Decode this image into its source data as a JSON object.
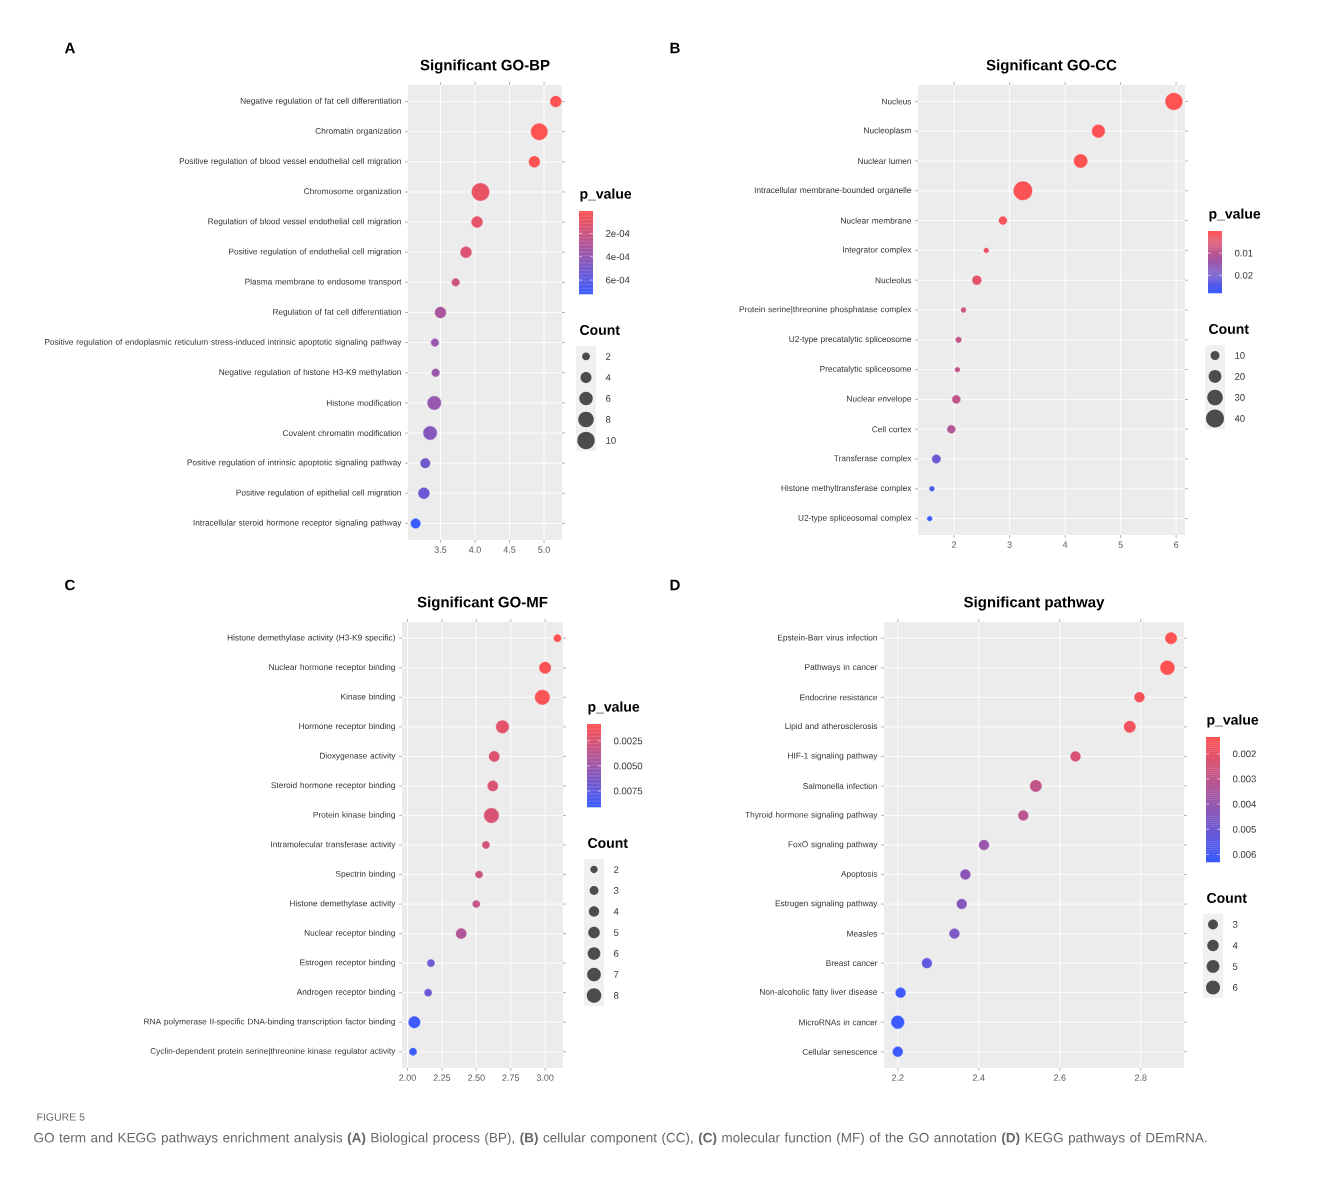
{
  "chart_data": [
    {
      "type": "bubble",
      "orientation": "horizontal",
      "title": "Significant GO-BP",
      "clabel": "p_value",
      "legend_title": "Count",
      "grid": true,
      "annotations": [
        "A"
      ],
      "categories": [
        "Negative regulation of fat cell differentiation",
        "Chromatin organization",
        "Positive regulation of blood vessel endothelial cell migration",
        "Chromosome organization",
        "Regulation of blood vessel endothelial cell migration",
        "Positive regulation of endothelial cell migration",
        "Plasma membrane to endosome transport",
        "Regulation of fat cell differentiation",
        "Positive regulation of endoplasmic reticulum stress-induced intrinsic apoptotic signaling pathway",
        "Negative regulation of histone H3-K9 methylation",
        "Histone modification",
        "Covalent chromatin modification",
        "Positive regulation of intrinsic apoptotic signaling pathway",
        "Positive regulation of epithelial cell migration",
        "Intracellular steroid hormone receptor signaling pathway"
      ],
      "values": [
        5.17,
        4.93,
        4.86,
        4.08,
        4.03,
        3.87,
        3.72,
        3.5,
        3.42,
        3.43,
        3.41,
        3.35,
        3.28,
        3.26,
        3.14
      ],
      "sizes": [
        4,
        9,
        4,
        10,
        4,
        4,
        2,
        4,
        2,
        2,
        6,
        6,
        3,
        4,
        3
      ],
      "cvalues": [
        6.8e-06,
        1.2e-05,
        1.4e-05,
        8.3e-05,
        9.3e-05,
        0.000135,
        0.00019,
        0.00032,
        0.00038,
        0.00037,
        0.00039,
        0.00045,
        0.00052,
        0.00055,
        0.00072
      ],
      "clim": [
        6.8e-06,
        0.00072
      ],
      "cticks": [
        {
          "value": 0.0002,
          "label": "2e-04"
        },
        {
          "value": 0.0004,
          "label": "4e-04"
        },
        {
          "value": 0.0006,
          "label": "6e-04"
        }
      ],
      "size_legend": [
        2,
        4,
        6,
        8,
        10
      ],
      "xlim": [
        3.03,
        5.26
      ],
      "xticks": [
        3.5,
        {
          "value": 4,
          "label": "4.0"
        },
        4.5,
        {
          "value": 5,
          "label": "5.0"
        }
      ]
    },
    {
      "type": "bubble",
      "orientation": "horizontal",
      "title": "Significant GO-CC",
      "clabel": "p_value",
      "legend_title": "Count",
      "grid": true,
      "annotations": [
        "B"
      ],
      "categories": [
        "Nucleus",
        "Nucleoplasm",
        "Nuclear lumen",
        "Intracellular membrane-bounded organelle",
        "Nuclear membrane",
        "Integrator complex",
        "Nucleolus",
        "Protein serine|threonine phosphatase complex",
        "U2-type precatalytic spliceosome",
        "Precatalytic spliceosome",
        "Nuclear envelope",
        "Cell cortex",
        "Transferase complex",
        "Histone methyltransferase complex",
        "U2-type spliceosomal complex"
      ],
      "values": [
        5.96,
        4.6,
        4.28,
        3.24,
        2.88,
        2.58,
        2.41,
        2.17,
        2.08,
        2.06,
        2.04,
        1.95,
        1.68,
        1.6,
        1.56
      ],
      "sizes": [
        35,
        20,
        22,
        42,
        8,
        3,
        10,
        3,
        4,
        3,
        8,
        8,
        9,
        3,
        3
      ],
      "cvalues": [
        1.1e-06,
        2.5e-05,
        5.2e-05,
        0.00058,
        0.0013,
        0.0026,
        0.0039,
        0.0068,
        0.0083,
        0.0087,
        0.0091,
        0.011,
        0.021,
        0.025,
        0.028
      ],
      "clim": [
        1.1e-06,
        0.028
      ],
      "cticks": [
        0.01,
        0.02
      ],
      "size_legend": [
        10,
        20,
        30,
        40
      ],
      "xlim": [
        1.35,
        6.16
      ],
      "xticks": [
        2,
        3,
        4,
        5,
        6
      ]
    },
    {
      "type": "bubble",
      "orientation": "horizontal",
      "title": "Significant GO-MF",
      "clabel": "p_value",
      "legend_title": "Count",
      "grid": true,
      "annotations": [
        "C"
      ],
      "categories": [
        "Histone demethylase activity (H3-K9 specific)",
        "Nuclear hormone receptor binding",
        "Kinase binding",
        "Hormone receptor binding",
        "Dioxygenase activity",
        "Steroid hormone receptor binding",
        "Protein kinase binding",
        "Intramolecular transferase activity",
        "Spectrin binding",
        "Histone demethylase activity",
        "Nuclear receptor binding",
        "Estrogen receptor binding",
        "Androgen receptor binding",
        "RNA polymerase II-specific DNA-binding transcription factor binding",
        "Cyclin-dependent protein serine|threonine kinase regulator activity"
      ],
      "values": [
        3.09,
        3.0,
        2.98,
        2.69,
        2.63,
        2.62,
        2.61,
        2.57,
        2.52,
        2.5,
        2.39,
        2.17,
        2.15,
        2.05,
        2.04
      ],
      "sizes": [
        2,
        5,
        8,
        6,
        4,
        4,
        8,
        2,
        2,
        2,
        4,
        2,
        2,
        5,
        2
      ],
      "cvalues": [
        0.00081,
        0.001,
        0.00105,
        0.002,
        0.0023,
        0.0024,
        0.0025,
        0.0027,
        0.003,
        0.0032,
        0.0041,
        0.0068,
        0.0071,
        0.0089,
        0.0091
      ],
      "clim": [
        0.00081,
        0.0091
      ],
      "cticks": [
        {
          "value": 0.0025,
          "label": "0.0025"
        },
        {
          "value": 0.005,
          "label": "0.0050"
        },
        {
          "value": 0.0075,
          "label": "0.0075"
        }
      ],
      "size_legend": [
        2,
        3,
        4,
        5,
        6,
        7,
        8
      ],
      "xlim": [
        1.96,
        3.13
      ],
      "xticks": [
        {
          "value": 2,
          "label": "2.00"
        },
        {
          "value": 2.25,
          "label": "2.25"
        },
        {
          "value": 2.5,
          "label": "2.50"
        },
        {
          "value": 2.75,
          "label": "2.75"
        },
        {
          "value": 3,
          "label": "3.00"
        }
      ]
    },
    {
      "type": "bubble",
      "orientation": "horizontal",
      "title": "Significant pathway",
      "clabel": "p_value",
      "legend_title": "Count",
      "grid": true,
      "annotations": [
        "D",
        "FIGURE 5",
        "GO term and KEGG pathways enrichment analysis **(A)** Biological process (BP), **(B)** cellular component (CC), **(C)** molecular function (MF) of the GO annotation **(D)** KEGG pathways of DEmRNA."
      ],
      "categories": [
        "Epstein-Barr virus infection",
        "Pathways in cancer",
        "Endocrine resistance",
        "Lipid and atherosclerosis",
        "HIF-1 signaling pathway",
        "Salmonella infection",
        "Thyroid hormone signaling pathway",
        "FoxO signaling pathway",
        "Apoptosis",
        "Estrogen signaling pathway",
        "Measles",
        "Breast cancer",
        "Non-alcoholic fatty liver disease",
        "MicroRNAs in cancer",
        "Cellular senescence"
      ],
      "values": [
        2.875,
        2.866,
        2.797,
        2.773,
        2.639,
        2.541,
        2.51,
        2.413,
        2.367,
        2.358,
        2.34,
        2.272,
        2.207,
        2.2,
        2.2
      ],
      "sizes": [
        4,
        6,
        3,
        4,
        3,
        4,
        3,
        3,
        3,
        3,
        3,
        3,
        3,
        5,
        3
      ],
      "cvalues": [
        0.00133,
        0.00136,
        0.0016,
        0.00169,
        0.0023,
        0.0029,
        0.0031,
        0.0039,
        0.0043,
        0.0044,
        0.0046,
        0.0053,
        0.0062,
        0.0063,
        0.0063
      ],
      "clim": [
        0.00133,
        0.0063
      ],
      "cticks": [
        0.002,
        0.003,
        0.004,
        0.005,
        0.006
      ],
      "size_legend": [
        3,
        4,
        5,
        6
      ],
      "xlim": [
        2.166,
        2.907
      ],
      "xticks": [
        2.2,
        2.4,
        2.6,
        2.8
      ]
    }
  ]
}
